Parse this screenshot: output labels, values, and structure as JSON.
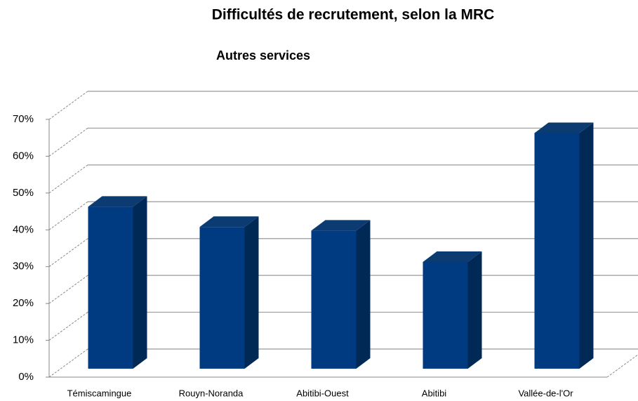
{
  "chart_data": {
    "type": "bar",
    "title": "Difficultés de recrutement, selon la MRC",
    "subtitle": "Autres services",
    "categories": [
      "Témiscamingue",
      "Rouyn-Noranda",
      "Abitibi-Ouest",
      "Abitibi",
      "Vallée-de-l'Or"
    ],
    "values": [
      44,
      38.5,
      37.5,
      29,
      64
    ],
    "color": "#003a80",
    "ylim": [
      0,
      70
    ],
    "yticks": [
      {
        "value": 0,
        "label": "0%"
      },
      {
        "value": 10,
        "label": "10%"
      },
      {
        "value": 20,
        "label": "20%"
      },
      {
        "value": 30,
        "label": "30%"
      },
      {
        "value": 40,
        "label": "40%"
      },
      {
        "value": 50,
        "label": "50%"
      },
      {
        "value": 60,
        "label": "60%"
      },
      {
        "value": 70,
        "label": "70%"
      }
    ],
    "grid": true
  }
}
